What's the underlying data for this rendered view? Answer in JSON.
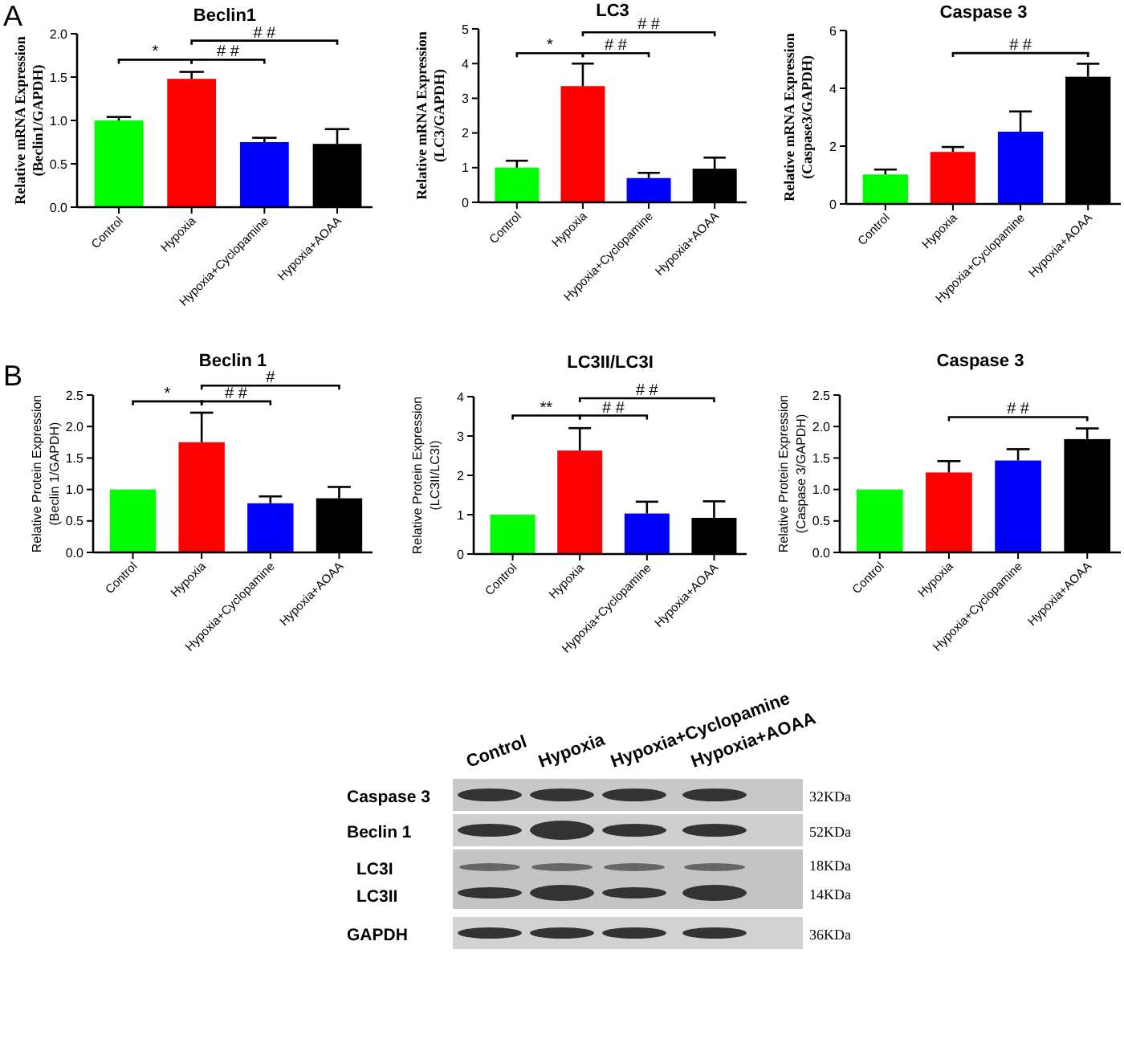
{
  "chart_data": [
    {
      "type": "bar",
      "title": "Beclin1",
      "ylabel": "Relative mRNA Expression\n(Beclin1/GAPDH)",
      "categories": [
        "Control",
        "Hypoxia",
        "Hypoxia+Cyclopamine",
        "Hypoxia+AOAA"
      ],
      "values": [
        1.0,
        1.48,
        0.75,
        0.73
      ],
      "errors": [
        0.04,
        0.08,
        0.05,
        0.17
      ],
      "colors": [
        "#00ff00",
        "#ff0000",
        "#0000ff",
        "#000000"
      ],
      "ylim": [
        0,
        2
      ],
      "yticks": [
        {
          "value": 0,
          "label": "0.0"
        },
        {
          "value": 0.5,
          "label": "0.5"
        },
        {
          "value": 1,
          "label": "1.0"
        },
        {
          "value": 1.5,
          "label": "1.5"
        },
        {
          "value": 2,
          "label": "2.0"
        }
      ],
      "annotations": [
        "A",
        "*",
        "# #",
        "# #"
      ]
    },
    {
      "type": "bar",
      "title": "LC3",
      "ylabel": "Relative mRNA Expression\n(LC3/GAPDH)",
      "categories": [
        "Control",
        "Hypoxia",
        "Hypoxia+Cyclopamine",
        "Hypoxia+AOAA"
      ],
      "values": [
        1.0,
        3.35,
        0.7,
        0.97
      ],
      "errors": [
        0.2,
        0.65,
        0.15,
        0.32
      ],
      "colors": [
        "#00ff00",
        "#ff0000",
        "#0000ff",
        "#000000"
      ],
      "ylim": [
        0,
        5
      ],
      "yticks": [
        0,
        1,
        2,
        3,
        4,
        5
      ],
      "annotations": [
        "*",
        "# #",
        "# #"
      ]
    },
    {
      "type": "bar",
      "title": "Caspase 3",
      "ylabel": "Relative mRNA Expression\n(Caspase3/GAPDH)",
      "categories": [
        "Control",
        "Hypoxia",
        "Hypoxia+Cyclopamine",
        "Hypoxia+AOAA"
      ],
      "values": [
        1.02,
        1.8,
        2.5,
        4.4
      ],
      "errors": [
        0.17,
        0.17,
        0.7,
        0.45
      ],
      "colors": [
        "#00ff00",
        "#ff0000",
        "#0000ff",
        "#000000"
      ],
      "ylim": [
        0,
        6
      ],
      "yticks": [
        0,
        2,
        4,
        6
      ],
      "annotations": [
        "# #"
      ]
    },
    {
      "type": "bar",
      "title": "Beclin 1",
      "ylabel": "Relative Protein  Expression\n(Beclin 1/GAPDH)",
      "categories": [
        "Control",
        "Hypoxia",
        "Hypoxia+Cyclopamine",
        "Hypoxia+AOAA"
      ],
      "values": [
        1.0,
        1.75,
        0.78,
        0.86
      ],
      "errors": [
        null,
        0.47,
        0.11,
        0.18
      ],
      "colors": [
        "#00ff00",
        "#ff0000",
        "#0000ff",
        "#000000"
      ],
      "ylim": [
        0,
        2.5
      ],
      "yticks": [
        {
          "value": 0,
          "label": "0.0"
        },
        {
          "value": 0.5,
          "label": "0.5"
        },
        {
          "value": 1,
          "label": "1.0"
        },
        {
          "value": 1.5,
          "label": "1.5"
        },
        {
          "value": 2,
          "label": "2.0"
        },
        {
          "value": 2.5,
          "label": "2.5"
        }
      ],
      "annotations": [
        "B",
        "*",
        "# #",
        "#"
      ]
    },
    {
      "type": "bar",
      "title": "LC3II/LC3I",
      "ylabel": "Relative Protein  Expression\n(LC3II/LC3I)",
      "categories": [
        "Control",
        "Hypoxia",
        "Hypoxia+Cyclopamine",
        "Hypoxia+AOAA"
      ],
      "values": [
        1.0,
        2.63,
        1.03,
        0.92
      ],
      "errors": [
        null,
        0.57,
        0.3,
        0.42
      ],
      "colors": [
        "#00ff00",
        "#ff0000",
        "#0000ff",
        "#000000"
      ],
      "ylim": [
        0,
        4
      ],
      "yticks": [
        0,
        1,
        2,
        3,
        4
      ],
      "annotations": [
        "**",
        "# #",
        "# #"
      ]
    },
    {
      "type": "bar",
      "title": "Caspase 3",
      "ylabel": "Relative Protein  Expression\n(Caspase 3/GAPDH)",
      "categories": [
        "Control",
        "Hypoxia",
        "Hypoxia+Cyclopamine",
        "Hypoxia+AOAA"
      ],
      "values": [
        1.0,
        1.27,
        1.46,
        1.8
      ],
      "errors": [
        null,
        0.18,
        0.18,
        0.17
      ],
      "colors": [
        "#00ff00",
        "#ff0000",
        "#0000ff",
        "#000000"
      ],
      "ylim": [
        0,
        2.5
      ],
      "yticks": [
        {
          "value": 0,
          "label": "0.0"
        },
        {
          "value": 0.5,
          "label": "0.5"
        },
        {
          "value": 1,
          "label": "1.0"
        },
        {
          "value": 1.5,
          "label": "1.5"
        },
        {
          "value": 2,
          "label": "2.0"
        },
        {
          "value": 2.5,
          "label": "2.5"
        }
      ],
      "annotations": [
        "# #"
      ]
    },
    {
      "type": "other",
      "annotations": [
        "Control",
        "Hypoxia",
        "Hypoxia+Cyclopamine",
        "Hypoxia+AOAA",
        "Caspase 3",
        "Beclin 1",
        "LC3I",
        "LC3II",
        "GAPDH",
        "32KDa",
        "52KDa",
        "18KDa",
        "14KDa",
        "36KDa"
      ]
    }
  ]
}
